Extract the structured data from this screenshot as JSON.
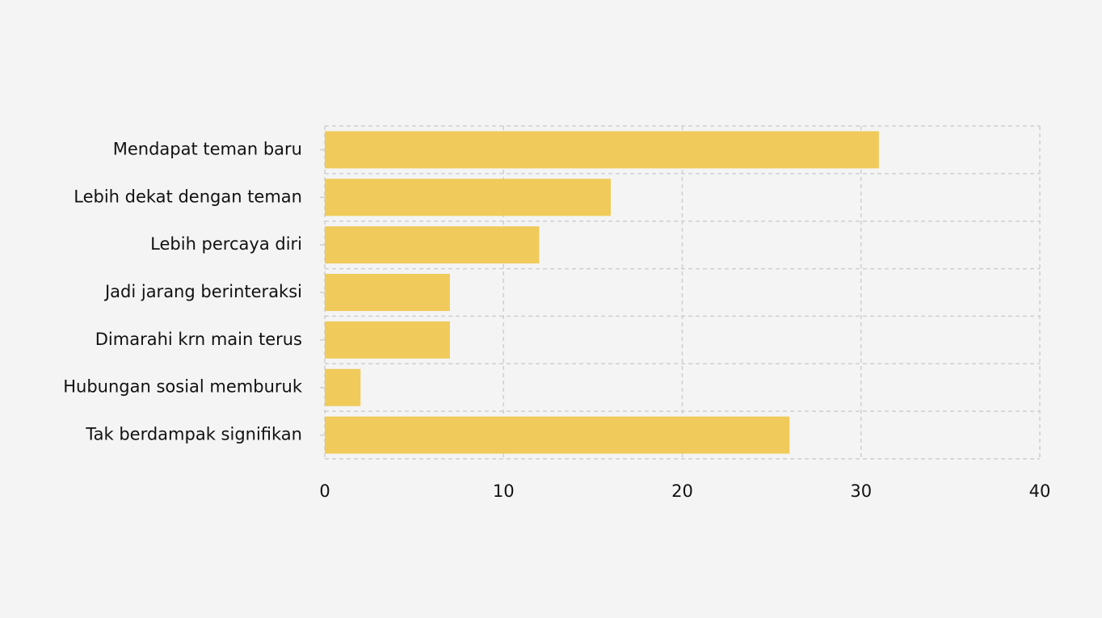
{
  "chart_data": {
    "type": "bar",
    "orientation": "horizontal",
    "categories": [
      "Mendapat teman baru",
      "Lebih dekat dengan teman",
      "Lebih percaya diri",
      "Jadi jarang berinteraksi",
      "Dimarahi krn main terus",
      "Hubungan sosial memburuk",
      "Tak berdampak signifikan"
    ],
    "values": [
      31,
      16,
      12,
      7,
      7,
      2,
      26
    ],
    "color": "#efc852",
    "xlim": [
      0,
      40
    ],
    "xticks": [
      0,
      10,
      20,
      30,
      40
    ],
    "grid": true
  }
}
